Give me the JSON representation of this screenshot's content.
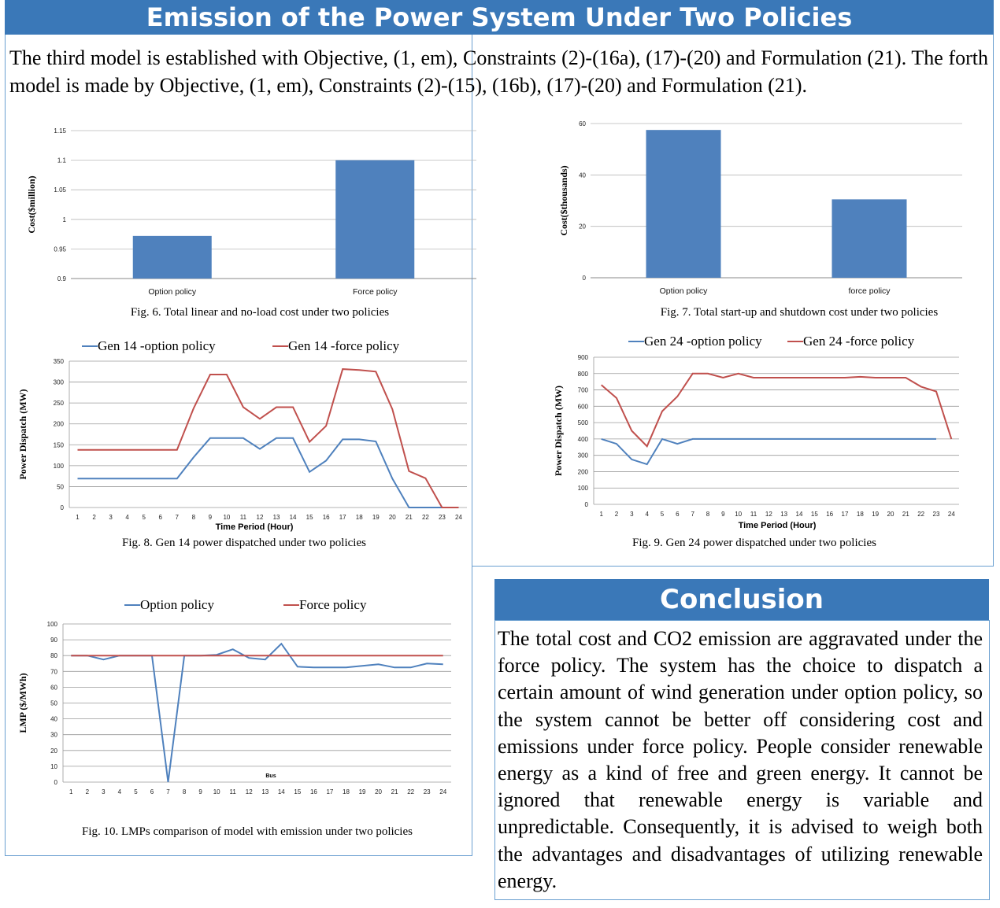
{
  "title": "Emission of the Power System Under Two Policies",
  "intro": "The third model is established with Objective, (1, em), Constraints (2)-(16a), (17)-(20) and Formulation (21). The forth model is made by Objective, (1, em), Constraints (2)-(15), (16b), (17)-(20) and Formulation (21).",
  "conclusion": {
    "heading": "Conclusion",
    "text": "The total cost and CO2 emission are aggravated under the force policy. The system has the choice to dispatch a certain amount of wind generation under option policy, so the system cannot be better off considering cost and emissions under force policy. People consider renewable energy as a kind of free and green energy. It cannot be ignored that renewable energy is variable and unpredictable. Consequently, it is advised to weigh both the advantages and disadvantages of utilizing renewable energy."
  },
  "colors": {
    "banner": "#3a78b8",
    "bar": "#4f81bd",
    "series_option": "#4f81bd",
    "series_force": "#c0504d"
  },
  "chart_data": [
    {
      "id": "fig6",
      "type": "bar",
      "caption": "Fig. 6. Total linear and no-load cost under two policies",
      "ylabel": "Cost($million)",
      "xlabel": "",
      "categories": [
        "Option policy",
        "Force policy"
      ],
      "values": [
        0.972,
        1.1
      ],
      "ylim": [
        0.9,
        1.15
      ],
      "yticks": [
        0.9,
        0.95,
        1,
        1.05,
        1.1,
        1.15
      ],
      "ytick_labels": [
        "0.9",
        "0.95",
        "1",
        "1.05",
        "1.1",
        "1.15"
      ]
    },
    {
      "id": "fig7",
      "type": "bar",
      "caption": "Fig. 7. Total start-up and shutdown cost under two policies",
      "ylabel": "Cost($thousands)",
      "xlabel": "",
      "categories": [
        "Option policy",
        "force policy"
      ],
      "values": [
        57.5,
        30.5
      ],
      "ylim": [
        0,
        60
      ],
      "yticks": [
        0,
        20,
        40,
        60
      ],
      "ytick_labels": [
        "0",
        "20",
        "40",
        "60"
      ]
    },
    {
      "id": "fig8",
      "type": "line",
      "caption": "Fig. 8. Gen 14 power dispatched under two policies",
      "ylabel": "Power Dispatch (MW)",
      "xlabel": "Time Period (Hour)",
      "x": [
        1,
        2,
        3,
        4,
        5,
        6,
        7,
        8,
        9,
        10,
        11,
        12,
        13,
        14,
        15,
        16,
        17,
        18,
        19,
        20,
        21,
        22,
        23,
        24
      ],
      "ylim": [
        0,
        350
      ],
      "yticks": [
        0,
        50,
        100,
        150,
        200,
        250,
        300,
        350
      ],
      "series": [
        {
          "name": "Gen 14 -option policy",
          "values": [
            69,
            69,
            69,
            69,
            69,
            69,
            69,
            120,
            166,
            166,
            166,
            140,
            166,
            166,
            85,
            112,
            163,
            163,
            158,
            69,
            0,
            0,
            0,
            0
          ]
        },
        {
          "name": "Gen 14 -force policy",
          "values": [
            138,
            138,
            138,
            138,
            138,
            138,
            138,
            237,
            318,
            318,
            240,
            212,
            240,
            240,
            157,
            195,
            331,
            329,
            325,
            235,
            87,
            70,
            0,
            0
          ]
        }
      ],
      "legend": "top"
    },
    {
      "id": "fig9",
      "type": "line",
      "caption": "Fig. 9. Gen 24 power dispatched under two policies",
      "ylabel": "Power Dispatch (MW)",
      "xlabel": "Time Period (Hour)",
      "x": [
        1,
        2,
        3,
        4,
        5,
        6,
        7,
        8,
        9,
        10,
        11,
        12,
        13,
        14,
        15,
        16,
        17,
        18,
        19,
        20,
        21,
        22,
        23,
        24
      ],
      "ylim": [
        0,
        900
      ],
      "yticks": [
        0,
        100,
        200,
        300,
        400,
        500,
        600,
        700,
        800,
        900
      ],
      "series": [
        {
          "name": "Gen 24 -option policy",
          "values": [
            400,
            370,
            275,
            245,
            400,
            370,
            400,
            400,
            400,
            400,
            400,
            400,
            400,
            400,
            400,
            400,
            400,
            400,
            400,
            400,
            400,
            400,
            400,
            null
          ]
        },
        {
          "name": "Gen 24 -force policy",
          "values": [
            730,
            650,
            450,
            355,
            570,
            660,
            800,
            800,
            775,
            800,
            775,
            775,
            775,
            775,
            775,
            775,
            775,
            780,
            775,
            775,
            775,
            720,
            690,
            400
          ]
        }
      ],
      "legend": "top"
    },
    {
      "id": "fig10",
      "type": "line",
      "caption": "Fig. 10. LMPs comparison of model with emission under two policies",
      "ylabel": "LMP ($/MWh)",
      "xlabel": "Bus",
      "x": [
        1,
        2,
        3,
        4,
        5,
        6,
        7,
        8,
        9,
        10,
        11,
        12,
        13,
        14,
        15,
        16,
        17,
        18,
        19,
        20,
        21,
        22,
        23,
        24
      ],
      "ylim": [
        0,
        100
      ],
      "yticks": [
        0,
        10,
        20,
        30,
        40,
        50,
        60,
        70,
        80,
        90,
        100
      ],
      "series": [
        {
          "name": "Option policy",
          "values": [
            80,
            80,
            77.5,
            80,
            80,
            80,
            0,
            80,
            80,
            80.5,
            84,
            78.5,
            77.5,
            87.5,
            73,
            72.5,
            72.5,
            72.5,
            73.5,
            74.5,
            72.5,
            72.5,
            75,
            74.5
          ]
        },
        {
          "name": "Force policy",
          "values": [
            80,
            80,
            80,
            80,
            80,
            80,
            80,
            80,
            80,
            80,
            80,
            80,
            80,
            80,
            80,
            80,
            80,
            80,
            80,
            80,
            80,
            80,
            80,
            80
          ]
        }
      ],
      "legend": "top"
    }
  ]
}
